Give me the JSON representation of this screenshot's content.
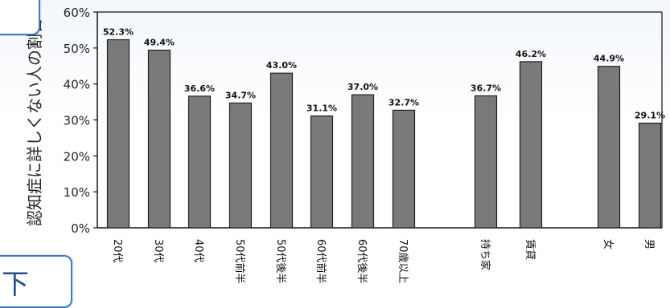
{
  "badges": {
    "bottom_label": "下"
  },
  "chart_data": {
    "type": "bar",
    "title": "",
    "ylabel": "認知症に詳しくない人の割合",
    "xlabel": "",
    "ylim": [
      0,
      60
    ],
    "yticks": [
      "0%",
      "10%",
      "20%",
      "30%",
      "40%",
      "50%",
      "60%"
    ],
    "grid": false,
    "groups": [
      {
        "categories": [
          "20代",
          "30代",
          "40代",
          "50代前半",
          "50代後半",
          "60代前半",
          "60代後半",
          "70歳以上"
        ],
        "values": [
          52.3,
          49.4,
          36.6,
          34.7,
          43.0,
          31.1,
          37.0,
          32.7
        ],
        "labels": [
          "52.3%",
          "49.4%",
          "36.6%",
          "34.7%",
          "43.0%",
          "31.1%",
          "37.0%",
          "32.7%"
        ]
      },
      {
        "categories": [
          "持ち家",
          "賃貸"
        ],
        "values": [
          36.7,
          46.2
        ],
        "labels": [
          "36.7%",
          "46.2%"
        ]
      },
      {
        "categories": [
          "女",
          "男"
        ],
        "values": [
          44.9,
          29.1
        ],
        "labels": [
          "44.9%",
          "29.1%"
        ]
      }
    ]
  },
  "colors": {
    "bar": "#7a7a7a",
    "bar_edge": "#222222",
    "axis": "#111111"
  }
}
